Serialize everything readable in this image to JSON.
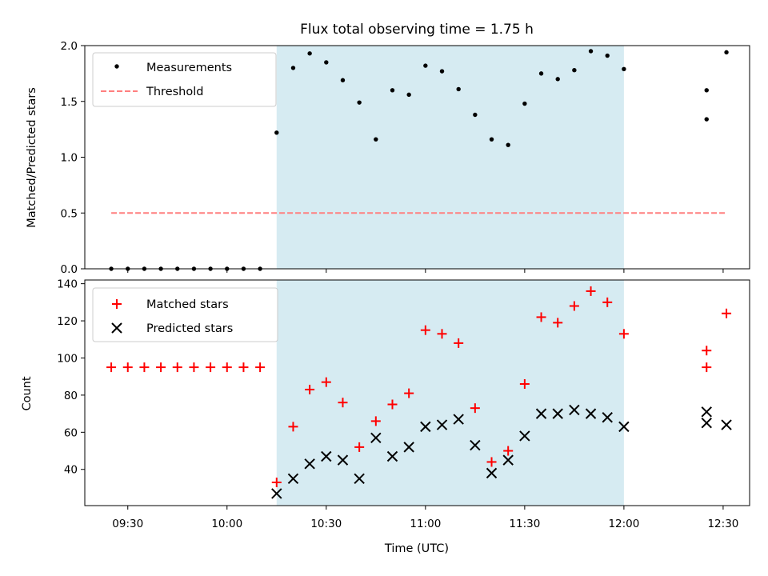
{
  "chart_data": [
    {
      "type": "scatter",
      "title": "Flux total observing time = 1.75 h",
      "xlabel": "",
      "ylabel": "Matched/Predicted stars",
      "ylim": [
        0,
        2.0
      ],
      "yticks": [
        0.0,
        0.5,
        1.0,
        1.5,
        2.0
      ],
      "ytick_labels": [
        "0.0",
        "0.5",
        "1.0",
        "1.5",
        "2.0"
      ],
      "xlim": [
        "09:17",
        "12:38"
      ],
      "shaded_region": {
        "x": [
          "10:15",
          "12:00"
        ],
        "color": "#add8e6",
        "opacity": 0.5
      },
      "legend_position": "upper-left",
      "series": [
        {
          "name": "Measurements",
          "marker": "dot",
          "color": "#000000",
          "x": [
            "09:25",
            "09:30",
            "09:35",
            "09:40",
            "09:45",
            "09:50",
            "09:55",
            "10:00",
            "10:05",
            "10:10",
            "10:15",
            "10:20",
            "10:25",
            "10:30",
            "10:35",
            "10:40",
            "10:45",
            "10:50",
            "10:55",
            "11:00",
            "11:05",
            "11:10",
            "11:15",
            "11:20",
            "11:25",
            "11:30",
            "11:35",
            "11:40",
            "11:45",
            "11:50",
            "11:55",
            "12:00",
            "12:25",
            "12:25",
            "12:31"
          ],
          "y": [
            0,
            0,
            0,
            0,
            0,
            0,
            0,
            0,
            0,
            0,
            1.22,
            1.8,
            1.93,
            1.85,
            1.69,
            1.49,
            1.16,
            1.6,
            1.56,
            1.82,
            1.77,
            1.61,
            1.38,
            1.16,
            1.11,
            1.48,
            1.75,
            1.7,
            1.78,
            1.95,
            1.91,
            1.79,
            1.34,
            1.6,
            1.94
          ]
        },
        {
          "name": "Threshold",
          "type": "line",
          "style": "dashed",
          "color": "#ff7f7f",
          "x": [
            "09:25",
            "12:31"
          ],
          "y": [
            0.5,
            0.5
          ]
        }
      ]
    },
    {
      "type": "scatter",
      "xlabel": "Time (UTC)",
      "ylabel": "Count",
      "ylim": [
        20.5,
        142
      ],
      "yticks": [
        40,
        60,
        80,
        100,
        120,
        140
      ],
      "ytick_labels": [
        "40",
        "60",
        "80",
        "100",
        "120",
        "140"
      ],
      "xlim": [
        "09:17",
        "12:38"
      ],
      "xticks": [
        "09:30",
        "10:00",
        "10:30",
        "11:00",
        "11:30",
        "12:00",
        "12:30"
      ],
      "xtick_labels": [
        "09:30",
        "10:00",
        "10:30",
        "11:00",
        "11:30",
        "12:00",
        "12:30"
      ],
      "shaded_region": {
        "x": [
          "10:15",
          "12:00"
        ],
        "color": "#add8e6",
        "opacity": 0.5
      },
      "legend_position": "upper-left",
      "series": [
        {
          "name": "Matched stars",
          "marker": "plus",
          "color": "#ff0000",
          "x": [
            "09:25",
            "09:30",
            "09:35",
            "09:40",
            "09:45",
            "09:50",
            "09:55",
            "10:00",
            "10:05",
            "10:10",
            "10:15",
            "10:20",
            "10:25",
            "10:30",
            "10:35",
            "10:40",
            "10:45",
            "10:50",
            "10:55",
            "11:00",
            "11:05",
            "11:10",
            "11:15",
            "11:20",
            "11:25",
            "11:30",
            "11:35",
            "11:40",
            "11:45",
            "11:50",
            "11:55",
            "12:00",
            "12:25",
            "12:25",
            "12:31"
          ],
          "y": [
            95,
            95,
            95,
            95,
            95,
            95,
            95,
            95,
            95,
            95,
            33,
            63,
            83,
            87,
            76,
            52,
            66,
            75,
            81,
            115,
            113,
            108,
            73,
            44,
            50,
            86,
            122,
            119,
            128,
            136,
            130,
            113,
            95,
            104,
            124
          ]
        },
        {
          "name": "Predicted stars",
          "marker": "x",
          "color": "#000000",
          "x": [
            "10:15",
            "10:20",
            "10:25",
            "10:30",
            "10:35",
            "10:40",
            "10:45",
            "10:50",
            "10:55",
            "11:00",
            "11:05",
            "11:10",
            "11:15",
            "11:20",
            "11:25",
            "11:30",
            "11:35",
            "11:40",
            "11:45",
            "11:50",
            "11:55",
            "12:00",
            "12:25",
            "12:25",
            "12:31"
          ],
          "y": [
            27,
            35,
            43,
            47,
            45,
            35,
            57,
            47,
            52,
            63,
            64,
            67,
            53,
            38,
            45,
            58,
            70,
            70,
            72,
            70,
            68,
            63,
            71,
            65,
            64
          ]
        }
      ]
    }
  ]
}
